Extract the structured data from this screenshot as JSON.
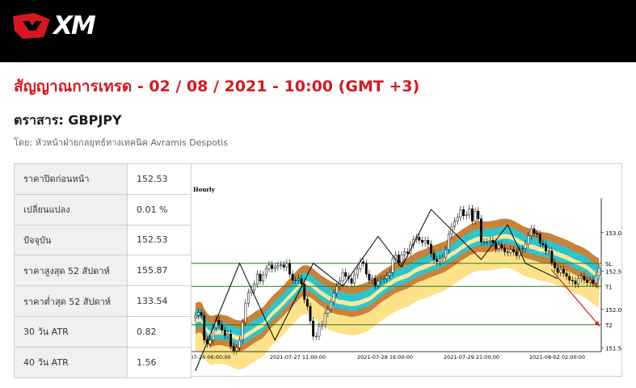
{
  "brand": {
    "name": "XM"
  },
  "headline": "สัญญาณการเทรด - 02 / 08 / 2021 - 10:00 (GMT +3)",
  "instrument": "ตราสาร: GBPJPY",
  "byline": "โดย: หัวหน้าฝ่ายกลยุทธ์ทางเทคนิค Avramis Despotis",
  "stats": [
    {
      "label": "ราคาปิดก่อนหน้า",
      "value": "152.53"
    },
    {
      "label": "เปลี่ยนแปลง",
      "value": "0.01 %"
    },
    {
      "label": "ปัจจุบัน",
      "value": "152.53"
    },
    {
      "label": "ราคาสูงสุด 52 สัปดาห์",
      "value": "155.87"
    },
    {
      "label": "ราคาต่ำสุด 52 สัปดาห์",
      "value": "133.54"
    },
    {
      "label": "30 วัน ATR",
      "value": "0.82"
    },
    {
      "label": "40 วัน ATR",
      "value": "1.56"
    }
  ],
  "chart_data": {
    "type": "candlestick",
    "timeframe_label": "Hourly",
    "x_tick_labels": [
      "-07-26 06:00:00",
      "2021-07-27 11:00:00",
      "2021-07-28 16:00:00",
      "2021-07-29 21:00:00",
      "2021-08-02 02:00:00"
    ],
    "y_tick_labels": [
      "151.50",
      "152.00",
      "152.50",
      "153.00"
    ],
    "ylim": [
      151.45,
      153.45
    ],
    "levels": [
      {
        "label": "SL",
        "value": 152.6
      },
      {
        "label": "T1",
        "value": 152.3
      },
      {
        "label": "T2",
        "value": 151.8
      }
    ],
    "zigzag_anchors": [
      [
        0,
        151.2
      ],
      [
        15,
        152.6
      ],
      [
        27,
        151.6
      ],
      [
        40,
        152.6
      ],
      [
        50,
        152.3
      ],
      [
        62,
        152.95
      ],
      [
        70,
        152.55
      ],
      [
        80,
        153.3
      ],
      [
        97,
        152.65
      ],
      [
        106,
        153.1
      ],
      [
        112,
        152.6
      ],
      [
        123,
        152.4
      ]
    ],
    "candles_close": [
      151.92,
      151.96,
      151.92,
      151.6,
      151.55,
      151.6,
      151.76,
      151.86,
      151.8,
      151.73,
      151.66,
      151.68,
      151.52,
      151.46,
      151.5,
      151.6,
      151.83,
      152.08,
      152.22,
      152.25,
      152.33,
      152.46,
      152.37,
      152.45,
      152.53,
      152.58,
      152.53,
      152.55,
      152.57,
      152.58,
      152.55,
      152.6,
      152.46,
      152.38,
      152.38,
      152.4,
      152.33,
      152.13,
      152.04,
      151.85,
      151.65,
      151.65,
      151.78,
      151.8,
      151.95,
      152.0,
      152.1,
      152.21,
      152.3,
      152.37,
      152.48,
      152.43,
      152.4,
      152.34,
      152.45,
      152.53,
      152.62,
      152.6,
      152.46,
      152.38,
      152.4,
      152.31,
      152.37,
      152.39,
      152.4,
      152.44,
      152.48,
      152.66,
      152.71,
      152.61,
      152.71,
      152.75,
      152.73,
      152.84,
      152.91,
      152.94,
      152.9,
      152.87,
      152.9,
      152.85,
      152.73,
      152.65,
      152.62,
      152.66,
      152.68,
      152.78,
      152.98,
      153.08,
      153.15,
      153.2,
      153.3,
      153.22,
      153.23,
      153.31,
      153.15,
      153.28,
      153.18,
      152.88,
      152.88,
      152.88,
      152.9,
      152.87,
      152.79,
      152.84,
      152.8,
      152.75,
      152.74,
      152.78,
      152.75,
      152.7,
      152.78,
      152.79,
      152.85,
      152.96,
      153.05,
      152.99,
      152.98,
      152.86,
      152.84,
      152.76,
      152.76,
      152.61,
      152.54,
      152.48,
      152.52,
      152.47,
      152.43,
      152.38,
      152.37,
      152.33,
      152.4,
      152.43,
      152.38,
      152.35,
      152.38,
      152.34,
      152.44,
      152.54
    ]
  }
}
